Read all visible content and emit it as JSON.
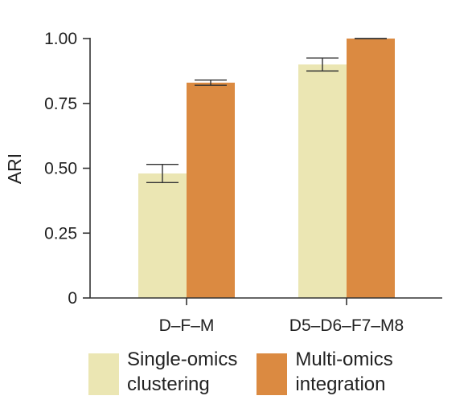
{
  "chart_data": {
    "type": "bar",
    "title": "",
    "xlabel": "",
    "ylabel": "ARI",
    "ylim": [
      0,
      1.0
    ],
    "yticks": [
      "0",
      "0.25",
      "0.50",
      "0.75",
      "1.00"
    ],
    "categories": [
      "D–F–M",
      "D5–D6–F7–M8"
    ],
    "series": [
      {
        "name": "Single-omics clustering",
        "name_lines": [
          "Single-omics",
          "clustering"
        ],
        "color": "#ebe6b3",
        "values": [
          0.48,
          0.9
        ],
        "error": [
          0.035,
          0.025
        ]
      },
      {
        "name": "Multi-omics integration",
        "name_lines": [
          "Multi-omics",
          "integration"
        ],
        "color": "#db8a41",
        "values": [
          0.83,
          1.0
        ],
        "error": [
          0.01,
          0.0
        ]
      }
    ],
    "grid": false,
    "legend_position": "bottom"
  }
}
